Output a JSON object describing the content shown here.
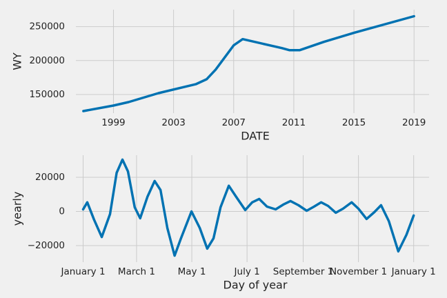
{
  "chart_data": [
    {
      "type": "line",
      "xlabel": "DATE",
      "ylabel": "WY",
      "color": "#0072b2",
      "grid": true,
      "x": [
        1997.0,
        1999.0,
        2000.0,
        2002.0,
        2004.5,
        2005.2,
        2005.8,
        2007.0,
        2007.6,
        2010.2,
        2010.7,
        2011.4,
        2013.0,
        2015.0,
        2019.0
      ],
      "values": [
        125500,
        133700,
        138800,
        152000,
        165300,
        172400,
        186700,
        222400,
        231600,
        218400,
        215300,
        215300,
        227500,
        240800,
        265300
      ],
      "xlim": [
        1996.5,
        2020.0
      ],
      "xticks": [
        1999,
        2003,
        2007,
        2011,
        2015,
        2019
      ],
      "ylim": [
        122500,
        275000
      ],
      "yticks": [
        150000,
        200000,
        250000
      ]
    },
    {
      "type": "line",
      "xlabel": "Day of year",
      "ylabel": "yearly",
      "color": "#0072b2",
      "grid": true,
      "x": [
        0,
        4.6,
        12,
        20.6,
        29.7,
        37,
        43.4,
        49.5,
        57,
        63,
        71,
        79,
        85.5,
        93,
        101,
        108,
        119.7,
        128.8,
        137,
        144,
        151.7,
        160.9,
        169,
        179,
        186.7,
        194.4,
        203,
        212.6,
        221,
        229,
        237.8,
        246.9,
        255,
        262.9,
        270.5,
        279,
        287,
        296.5,
        304,
        313,
        321.6,
        329,
        337.6,
        348,
        357,
        365
      ],
      "values": [
        1200,
        5300,
        -4800,
        -15000,
        -1600,
        22600,
        30300,
        23400,
        2400,
        -4000,
        8500,
        17800,
        12500,
        -9700,
        -25900,
        -15800,
        0,
        -9700,
        -21800,
        -15800,
        2400,
        15000,
        8500,
        800,
        5300,
        7300,
        2800,
        1200,
        4000,
        6100,
        3600,
        400,
        2800,
        5300,
        3200,
        -800,
        1600,
        5300,
        1600,
        -4400,
        -400,
        3600,
        -5700,
        -23400,
        -13700,
        -2400
      ],
      "xlim": [
        -8,
        382
      ],
      "xticks": [
        {
          "value": 0,
          "label": "January 1"
        },
        {
          "value": 59,
          "label": "March 1"
        },
        {
          "value": 120,
          "label": "May 1"
        },
        {
          "value": 181,
          "label": "July 1"
        },
        {
          "value": 243,
          "label": "September 1"
        },
        {
          "value": 304,
          "label": "November 1"
        },
        {
          "value": 365,
          "label": "January 1"
        }
      ],
      "ylim": [
        -29700,
        32900
      ],
      "yticks": [
        {
          "value": -20000,
          "label": "−20000"
        },
        0,
        20000
      ]
    }
  ]
}
